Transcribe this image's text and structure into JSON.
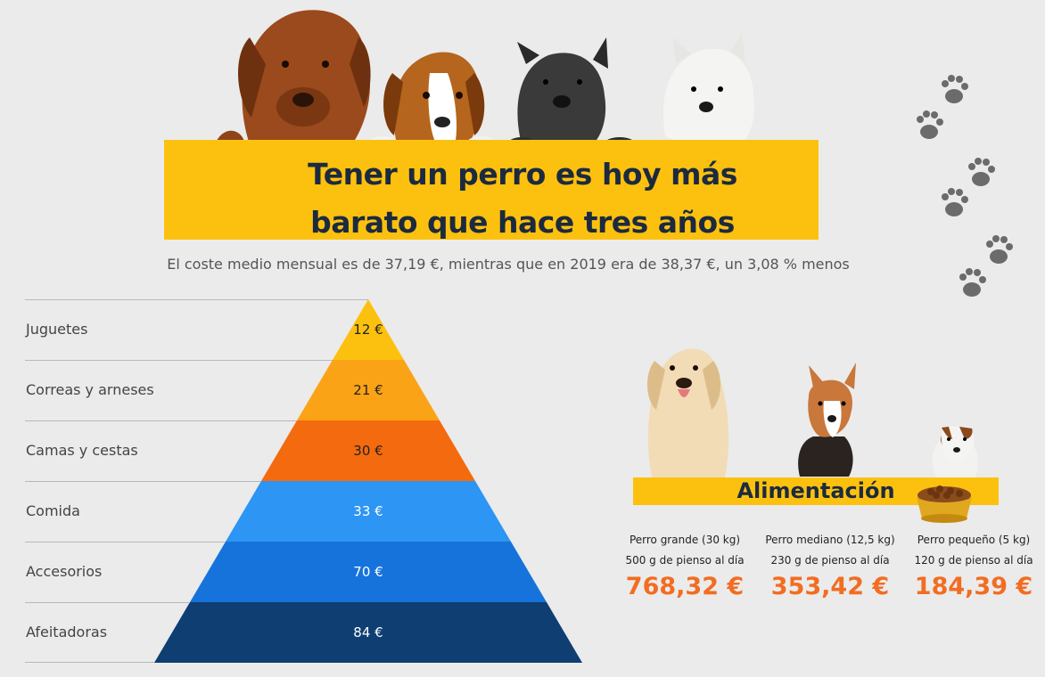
{
  "header": {
    "title_line1": "Tener un perro es hoy más",
    "title_line2": "barato que hace tres años",
    "subtitle": "El coste medio mensual es de 37,19 €, mientras que en 2019 era de 38,37 €, un 3,08 % menos"
  },
  "pyramid": {
    "rows": [
      {
        "label": "Juguetes",
        "value": "12 €",
        "color": "#fcc10f",
        "text_color": "#222222"
      },
      {
        "label": "Correas y arneses",
        "value": "21 €",
        "color": "#fba317",
        "text_color": "#222222"
      },
      {
        "label": "Camas y cestas",
        "value": "30 €",
        "color": "#f46a0e",
        "text_color": "#222222"
      },
      {
        "label": "Comida",
        "value": "33 €",
        "color": "#2d95f3",
        "text_color": "#ffffff"
      },
      {
        "label": "Accesorios",
        "value": "70 €",
        "color": "#1673dc",
        "text_color": "#ffffff"
      },
      {
        "label": "Afeitadoras",
        "value": "84 €",
        "color": "#0e3e72",
        "text_color": "#ffffff"
      }
    ]
  },
  "food": {
    "title": "Alimentación",
    "columns": [
      {
        "name": "Perro grande (30 kg)",
        "qty": "500 g de pienso al día",
        "price": "768,32 €"
      },
      {
        "name": "Perro mediano (12,5 kg)",
        "qty": "230 g de pienso al día",
        "price": "353,42 €"
      },
      {
        "name": "Perro pequeño (5 kg)",
        "qty": "120 g de pienso al día",
        "price": "184,39 €"
      }
    ]
  },
  "colors": {
    "banner": "#fcc10f",
    "price": "#f26d21",
    "title": "#1c2a3f"
  }
}
